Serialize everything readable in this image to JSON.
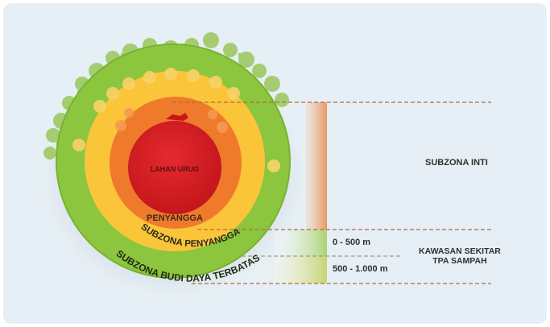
{
  "diagram": {
    "zones": {
      "core": "LAHAN URUG",
      "buffer": "PENYANGGA",
      "buffer_subzone": "SUBZONA PENYANGGA",
      "limited_cultivation": "SUBZONA BUDI DAYA TERBATAS"
    },
    "right_labels": {
      "core_subzone": "SUBZONA INTI",
      "surrounding_area_line1": "KAWASAN SEKITAR",
      "surrounding_area_line2": "TPA SAMPAH"
    },
    "distances": {
      "near": "0 - 500 m",
      "far": "500 - 1.000 m"
    },
    "colors": {
      "background": "#e6eff5",
      "core": "#d81f26",
      "buffer": "#f07a2c",
      "buffer_subzone": "#fbc53a",
      "limited_cultivation": "#8cc63f",
      "dashed_line": "#b36a3a",
      "vegetation": "#8dbb4e"
    },
    "icons": [
      "tree-icon",
      "house-icon",
      "truck-icon"
    ]
  }
}
